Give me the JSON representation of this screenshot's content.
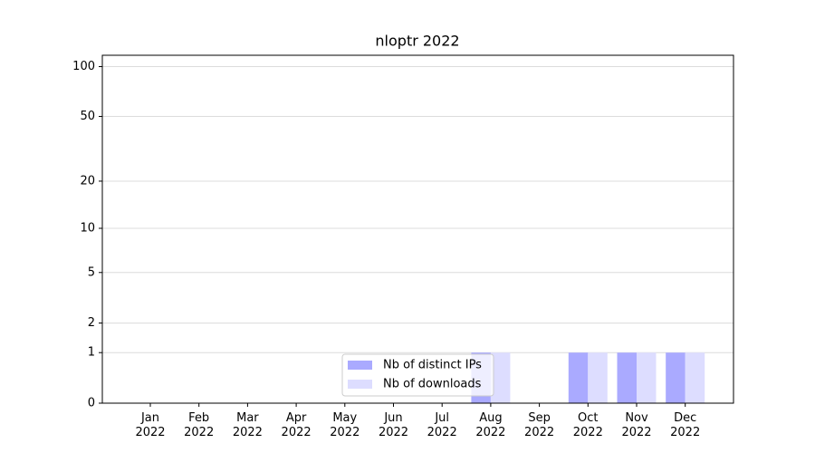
{
  "chart_data": {
    "type": "bar",
    "title": "nloptr 2022",
    "categories": [
      "Jan 2022",
      "Feb 2022",
      "Mar 2022",
      "Apr 2022",
      "May 2022",
      "Jun 2022",
      "Jul 2022",
      "Aug 2022",
      "Sep 2022",
      "Oct 2022",
      "Nov 2022",
      "Dec 2022"
    ],
    "series": [
      {
        "name": "Nb of distinct IPs",
        "color": "#aaaaff",
        "values": [
          0,
          0,
          0,
          0,
          0,
          0,
          0,
          1,
          0,
          1,
          1,
          1
        ]
      },
      {
        "name": "Nb of downloads",
        "color": "#ddddff",
        "values": [
          0,
          0,
          0,
          0,
          0,
          0,
          0,
          1,
          0,
          1,
          1,
          1
        ]
      }
    ],
    "yscale": "symlog",
    "ylim": [
      0,
      117
    ],
    "yticks": [
      0,
      1,
      2,
      5,
      10,
      20,
      50,
      100
    ],
    "grid": true,
    "legend": "lower center"
  }
}
